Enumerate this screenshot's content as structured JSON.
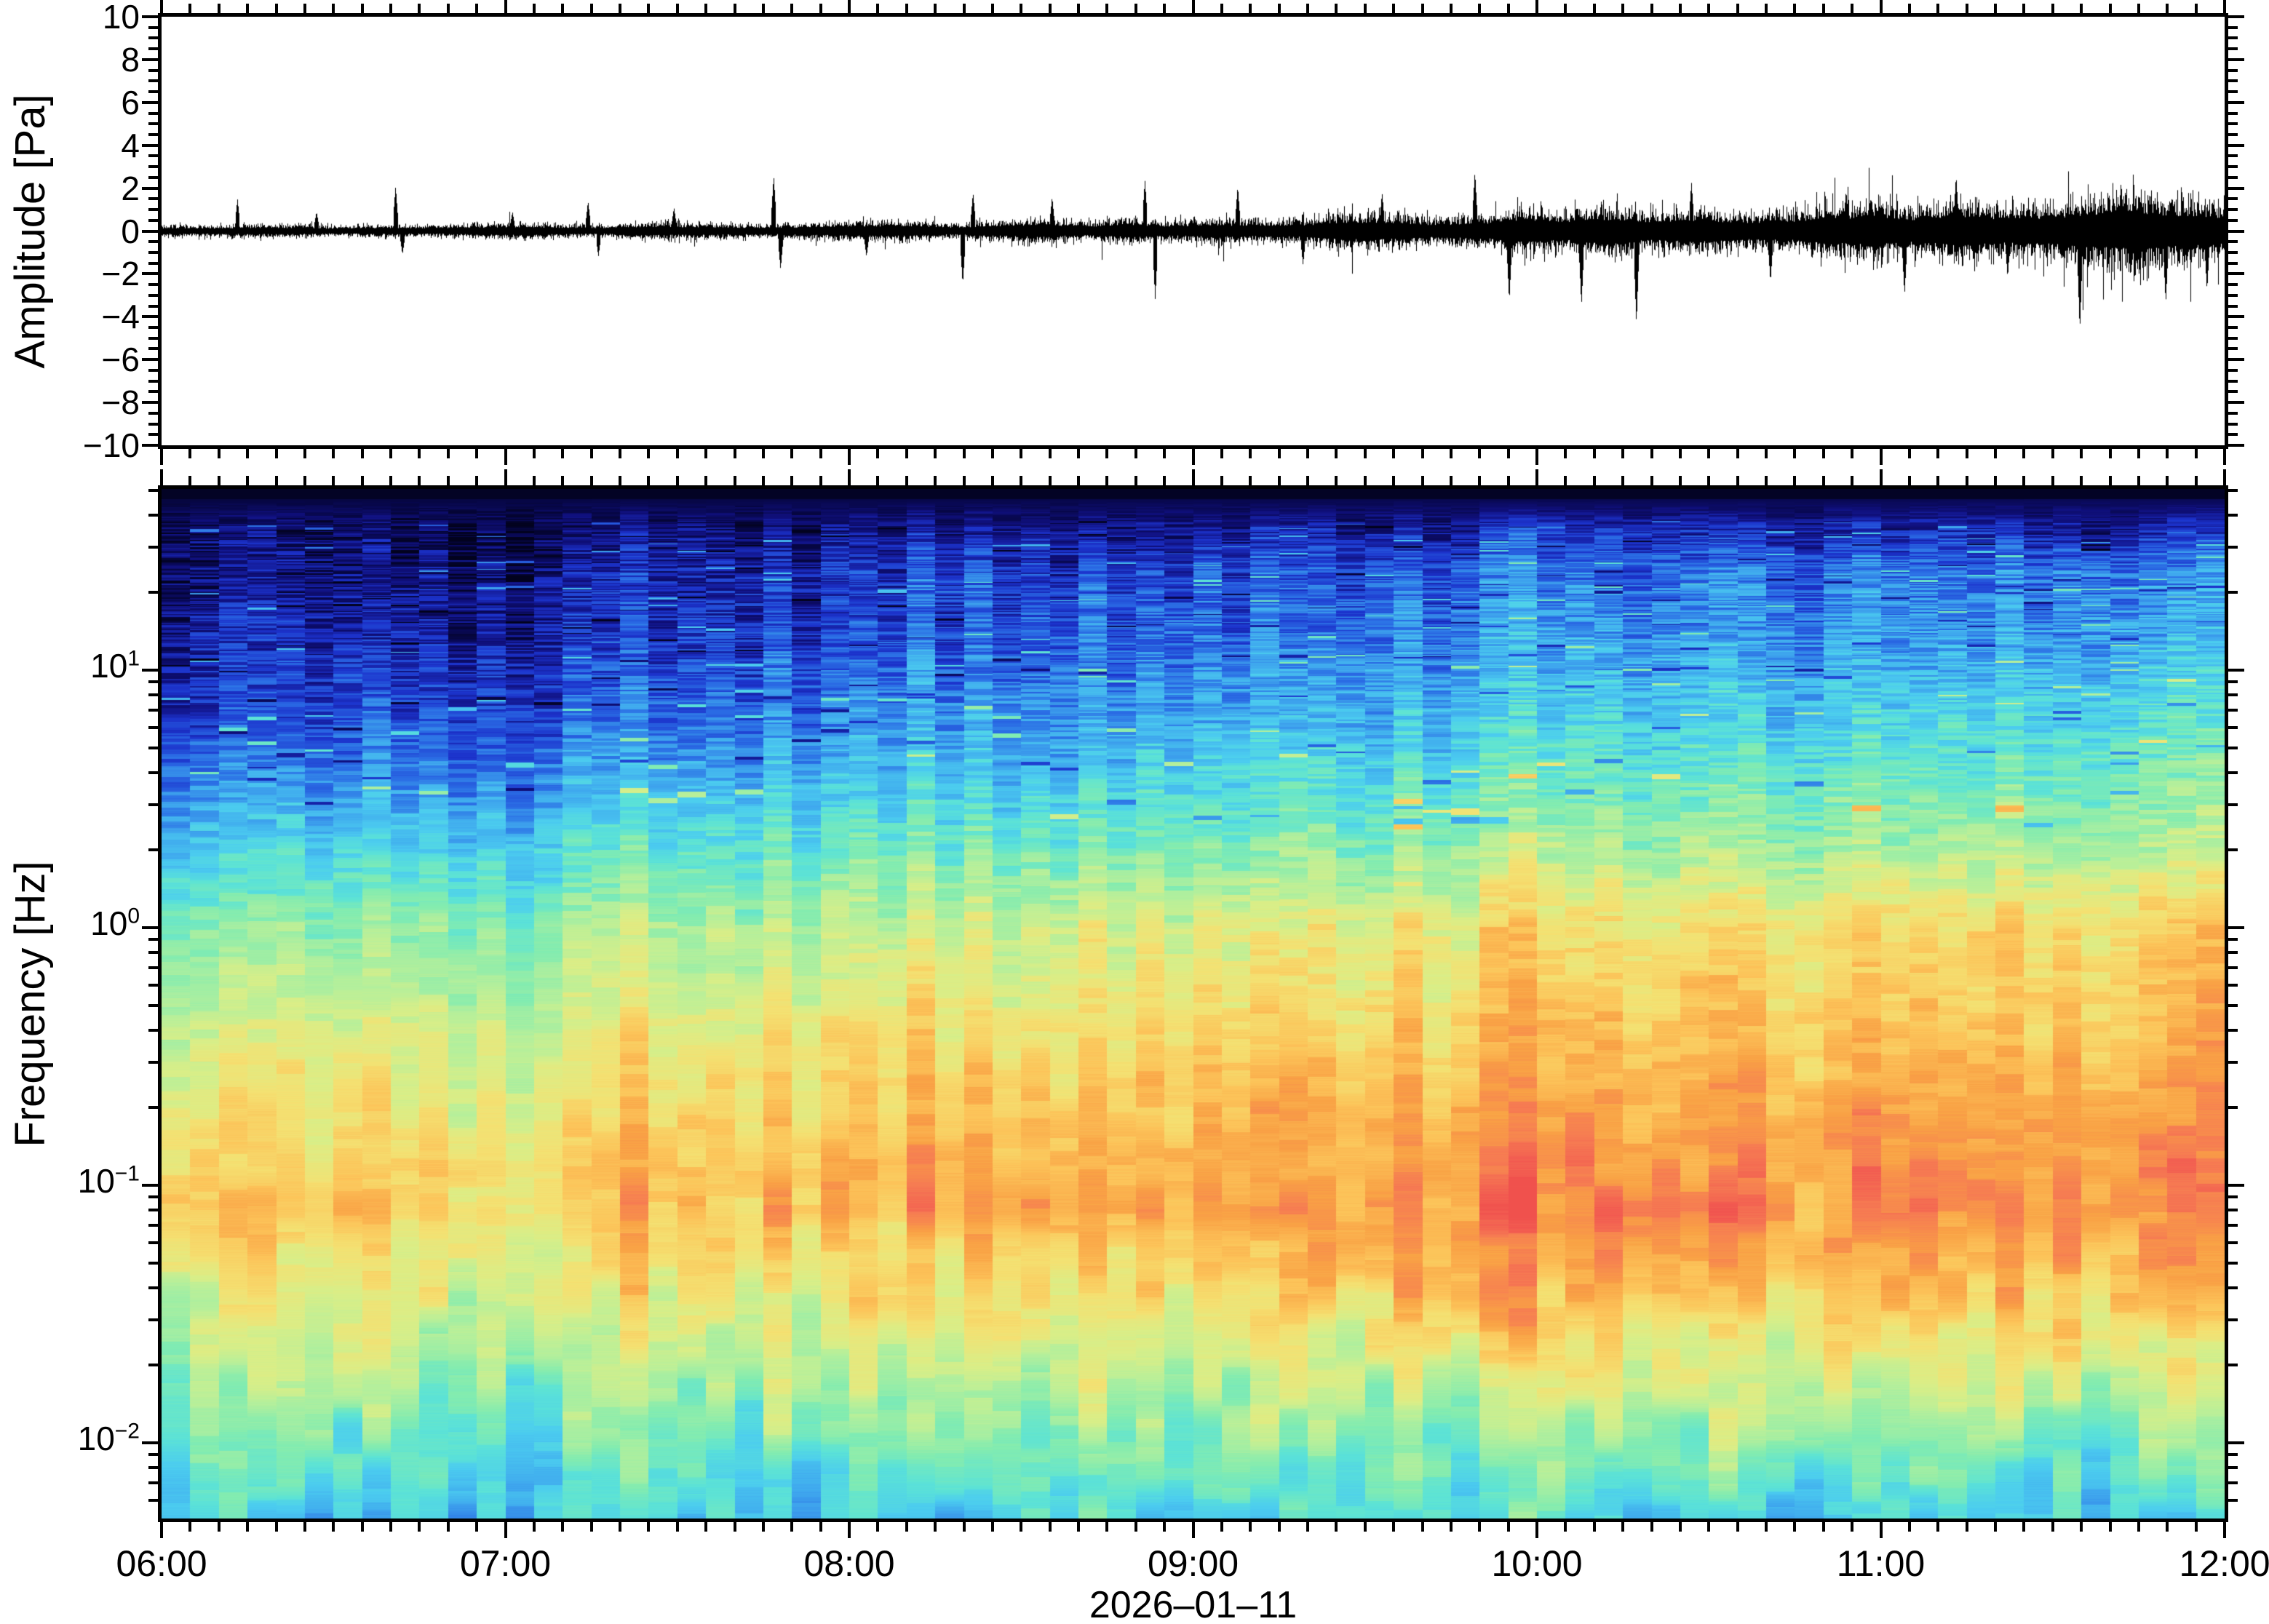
{
  "figure": {
    "description": "Infrasound waveform and spectrogram, 2026-01-11 06:00-12:00",
    "background": "#ffffff",
    "frame_color": "#000000"
  },
  "axes": {
    "amplitude": {
      "title": "Amplitude [Pa]",
      "ylim": [
        -10,
        10
      ],
      "major_tick_step": 2,
      "minor_tick_step": 0.5,
      "tick_labels": [
        "10",
        "8",
        "6",
        "4",
        "2",
        "0",
        "−2",
        "−4",
        "−6",
        "−8",
        "−10"
      ],
      "tick_values": [
        10,
        8,
        6,
        4,
        2,
        0,
        -2,
        -4,
        -6,
        -8,
        -10
      ]
    },
    "frequency": {
      "title": "Frequency [Hz]",
      "scale": "log",
      "ylim": [
        0.00508,
        50.6
      ],
      "decade_labels": [
        {
          "base": "10",
          "exp": "1",
          "value": 10
        },
        {
          "base": "10",
          "exp": "0",
          "value": 1
        },
        {
          "base": "10",
          "exp": "−1",
          "value": 0.1
        },
        {
          "base": "10",
          "exp": "−2",
          "value": 0.01
        }
      ]
    },
    "time": {
      "range_hours": [
        6,
        12
      ],
      "major_tick_minutes": 60,
      "minor_tick_minutes": 5,
      "tick_labels": [
        "06:00",
        "07:00",
        "08:00",
        "09:00",
        "10:00",
        "11:00",
        "12:00"
      ],
      "tick_hours": [
        6,
        7,
        8,
        9,
        10,
        11,
        12
      ],
      "date_label": "2026–01–11"
    }
  },
  "chart_data": [
    {
      "type": "line",
      "name": "infrasound-waveform",
      "title": "",
      "xlabel": "2026–01–11",
      "ylabel": "Amplitude [Pa]",
      "ylim": [
        -10,
        10
      ],
      "x_range_hours": [
        6,
        12
      ],
      "line_color": "#000000",
      "noise_seed": 42,
      "envelope_t_step_hours": 0.25,
      "envelope_sigma_pa": [
        0.1,
        0.1,
        0.11,
        0.11,
        0.12,
        0.12,
        0.13,
        0.14,
        0.16,
        0.17,
        0.19,
        0.21,
        0.24,
        0.26,
        0.29,
        0.32,
        0.35,
        0.38,
        0.41,
        0.44,
        0.48,
        0.52,
        0.55,
        0.58,
        0.6
      ],
      "spikes_hour_amp": [
        [
          6.22,
          1.5
        ],
        [
          6.45,
          0.9
        ],
        [
          6.68,
          2.1
        ],
        [
          6.7,
          -1.1
        ],
        [
          7.02,
          0.9
        ],
        [
          7.24,
          1.4
        ],
        [
          7.27,
          -1.2
        ],
        [
          7.49,
          1.1
        ],
        [
          7.78,
          2.6
        ],
        [
          7.8,
          -1.8
        ],
        [
          8.05,
          -1.2
        ],
        [
          8.33,
          -2.5
        ],
        [
          8.36,
          1.8
        ],
        [
          8.59,
          1.6
        ],
        [
          8.86,
          2.4
        ],
        [
          8.89,
          -3.2
        ],
        [
          9.13,
          2.1
        ],
        [
          9.32,
          -1.6
        ],
        [
          9.55,
          1.8
        ],
        [
          9.82,
          2.8
        ],
        [
          9.92,
          -3.3
        ],
        [
          10.13,
          -3.5
        ],
        [
          10.29,
          -4.4
        ],
        [
          10.45,
          2.3
        ],
        [
          10.68,
          -2.4
        ],
        [
          10.9,
          1.9
        ],
        [
          11.07,
          -3.0
        ],
        [
          11.22,
          2.6
        ],
        [
          11.37,
          -2.2
        ],
        [
          11.58,
          -4.7
        ],
        [
          11.7,
          2.3
        ],
        [
          11.83,
          -3.4
        ],
        [
          11.95,
          -2.8
        ]
      ]
    },
    {
      "type": "heatmap",
      "name": "infrasound-spectrogram",
      "xlabel": "2026–01–11",
      "ylabel": "Frequency [Hz]",
      "x_range_hours": [
        6,
        12
      ],
      "freq_range_hz": [
        0.00508,
        50.6
      ],
      "time_bins": 72,
      "noise_seed": 1337,
      "colormap_stops": [
        [
          0.0,
          "#02021a"
        ],
        [
          0.05,
          "#07074a"
        ],
        [
          0.11,
          "#10107e"
        ],
        [
          0.19,
          "#1c33cc"
        ],
        [
          0.27,
          "#2a6ae4"
        ],
        [
          0.35,
          "#3fa8ee"
        ],
        [
          0.42,
          "#4ccdef"
        ],
        [
          0.48,
          "#5ce3d6"
        ],
        [
          0.55,
          "#83ecb0"
        ],
        [
          0.62,
          "#b4ef9c"
        ],
        [
          0.68,
          "#daee87"
        ],
        [
          0.74,
          "#f4e172"
        ],
        [
          0.8,
          "#fcc55a"
        ],
        [
          0.86,
          "#f9a245"
        ],
        [
          0.92,
          "#f67d52"
        ],
        [
          0.97,
          "#f25b51"
        ],
        [
          1.0,
          "#ee4b4b"
        ]
      ],
      "profile_log10f": [
        1.7,
        1.6,
        1.4,
        1.1,
        0.8,
        0.4,
        0.0,
        -0.4,
        -0.8,
        -1.1,
        -1.4,
        -1.8,
        -2.1,
        -2.294
      ],
      "profile_value_start": [
        0.02,
        0.07,
        0.1,
        0.14,
        0.2,
        0.38,
        0.55,
        0.66,
        0.74,
        0.78,
        0.7,
        0.58,
        0.48,
        0.42
      ],
      "profile_value_end": [
        0.03,
        0.12,
        0.3,
        0.38,
        0.48,
        0.6,
        0.78,
        0.82,
        0.88,
        0.9,
        0.82,
        0.66,
        0.52,
        0.45
      ],
      "time_exponent": 0.8,
      "column_adjust": {
        "10": -0.06,
        "12": -0.08,
        "13": -0.07,
        "16": 0.09,
        "20": -0.05,
        "22": -0.06,
        "26": 0.05,
        "46": 0.06,
        "47": 0.07
      }
    }
  ]
}
